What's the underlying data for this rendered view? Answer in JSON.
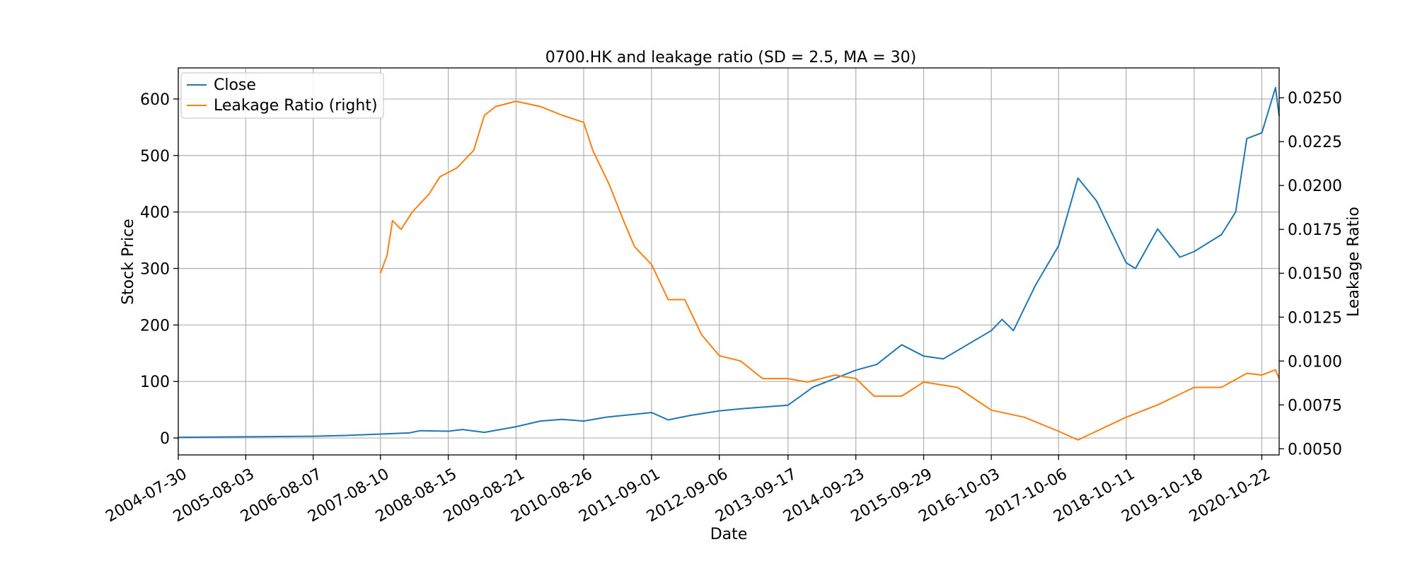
{
  "chart_data": {
    "type": "line",
    "title": "0700.HK and leakage ratio (SD = 2.5, MA = 30)",
    "xlabel": "Date",
    "ylabel": "Stock Price",
    "y2label": "Leakage Ratio",
    "xlim": [
      "2004-07-30",
      "2021-01-25"
    ],
    "ylim": [
      -30,
      655
    ],
    "y2lim": [
      0.00465,
      0.0267
    ],
    "grid": true,
    "legend_placement": "top-left",
    "x_ticks": [
      "2004-07-30",
      "2005-08-03",
      "2006-08-07",
      "2007-08-10",
      "2008-08-15",
      "2009-08-21",
      "2010-08-26",
      "2011-09-01",
      "2012-09-06",
      "2013-09-17",
      "2014-09-23",
      "2015-09-29",
      "2016-10-03",
      "2017-10-06",
      "2018-10-11",
      "2019-10-18",
      "2020-10-22"
    ],
    "y_ticks": [
      0,
      100,
      200,
      300,
      400,
      500,
      600
    ],
    "y2_ticks": [
      0.005,
      0.0075,
      0.01,
      0.0125,
      0.015,
      0.0175,
      0.02,
      0.0225,
      0.025
    ],
    "y2_tick_labels": [
      "0.0050",
      "0.0075",
      "0.0100",
      "0.0125",
      "0.0150",
      "0.0175",
      "0.0200",
      "0.0225",
      "0.0250"
    ],
    "series": [
      {
        "name": "Close",
        "axis": "left",
        "color": "#1f77b4",
        "points": [
          [
            "2004-07-30",
            1
          ],
          [
            "2005-02-01",
            1.5
          ],
          [
            "2005-08-03",
            2
          ],
          [
            "2006-02-01",
            2.5
          ],
          [
            "2006-08-07",
            3
          ],
          [
            "2007-02-01",
            4.5
          ],
          [
            "2007-08-10",
            7
          ],
          [
            "2008-01-15",
            9
          ],
          [
            "2008-03-15",
            13
          ],
          [
            "2008-08-15",
            12
          ],
          [
            "2008-11-01",
            15
          ],
          [
            "2009-03-01",
            10
          ],
          [
            "2009-08-21",
            20
          ],
          [
            "2010-01-01",
            30
          ],
          [
            "2010-05-01",
            33
          ],
          [
            "2010-08-26",
            30
          ],
          [
            "2011-01-01",
            37
          ],
          [
            "2011-09-01",
            45
          ],
          [
            "2011-12-01",
            32
          ],
          [
            "2012-04-01",
            40
          ],
          [
            "2012-09-06",
            48
          ],
          [
            "2013-01-15",
            52
          ],
          [
            "2013-09-17",
            58
          ],
          [
            "2014-02-01",
            90
          ],
          [
            "2014-09-23",
            120
          ],
          [
            "2015-01-15",
            130
          ],
          [
            "2015-06-01",
            165
          ],
          [
            "2015-09-29",
            145
          ],
          [
            "2016-01-15",
            140
          ],
          [
            "2016-10-03",
            190
          ],
          [
            "2016-12-01",
            210
          ],
          [
            "2017-02-01",
            190
          ],
          [
            "2017-06-01",
            270
          ],
          [
            "2017-10-06",
            340
          ],
          [
            "2018-01-20",
            460
          ],
          [
            "2018-05-01",
            420
          ],
          [
            "2018-10-11",
            310
          ],
          [
            "2018-12-01",
            300
          ],
          [
            "2019-04-01",
            370
          ],
          [
            "2019-08-01",
            320
          ],
          [
            "2019-10-18",
            330
          ],
          [
            "2020-03-15",
            360
          ],
          [
            "2020-06-01",
            400
          ],
          [
            "2020-08-01",
            530
          ],
          [
            "2020-10-22",
            540
          ],
          [
            "2021-01-05",
            620
          ],
          [
            "2021-01-25",
            570
          ]
        ]
      },
      {
        "name": "Leakage Ratio (right)",
        "axis": "right",
        "color": "#ff7f0e",
        "points": [
          [
            "2007-08-10",
            0.015
          ],
          [
            "2007-09-15",
            0.016
          ],
          [
            "2007-10-15",
            0.018
          ],
          [
            "2007-12-01",
            0.0175
          ],
          [
            "2008-02-01",
            0.0185
          ],
          [
            "2008-05-01",
            0.0195
          ],
          [
            "2008-07-01",
            0.0205
          ],
          [
            "2008-10-01",
            0.021
          ],
          [
            "2009-01-01",
            0.022
          ],
          [
            "2009-03-01",
            0.024
          ],
          [
            "2009-05-01",
            0.0245
          ],
          [
            "2009-08-21",
            0.0248
          ],
          [
            "2010-01-01",
            0.0245
          ],
          [
            "2010-05-01",
            0.024
          ],
          [
            "2010-08-26",
            0.0236
          ],
          [
            "2010-10-15",
            0.022
          ],
          [
            "2011-01-15",
            0.02
          ],
          [
            "2011-04-01",
            0.018
          ],
          [
            "2011-06-01",
            0.0165
          ],
          [
            "2011-09-01",
            0.0155
          ],
          [
            "2011-12-01",
            0.0135
          ],
          [
            "2012-03-01",
            0.0135
          ],
          [
            "2012-06-01",
            0.0115
          ],
          [
            "2012-09-06",
            0.0103
          ],
          [
            "2013-01-01",
            0.01
          ],
          [
            "2013-05-01",
            0.009
          ],
          [
            "2013-09-17",
            0.009
          ],
          [
            "2014-01-01",
            0.0088
          ],
          [
            "2014-06-01",
            0.0092
          ],
          [
            "2014-09-23",
            0.009
          ],
          [
            "2015-01-01",
            0.008
          ],
          [
            "2015-06-01",
            0.008
          ],
          [
            "2015-09-29",
            0.0088
          ],
          [
            "2016-04-01",
            0.0085
          ],
          [
            "2016-10-03",
            0.0072
          ],
          [
            "2017-04-01",
            0.0068
          ],
          [
            "2017-10-06",
            0.006
          ],
          [
            "2018-01-20",
            0.0055
          ],
          [
            "2018-05-01",
            0.006
          ],
          [
            "2018-10-11",
            0.0068
          ],
          [
            "2019-04-01",
            0.0075
          ],
          [
            "2019-10-18",
            0.0085
          ],
          [
            "2020-03-15",
            0.0085
          ],
          [
            "2020-08-01",
            0.0093
          ],
          [
            "2020-10-22",
            0.0092
          ],
          [
            "2021-01-05",
            0.0095
          ],
          [
            "2021-01-25",
            0.009
          ]
        ]
      }
    ]
  }
}
